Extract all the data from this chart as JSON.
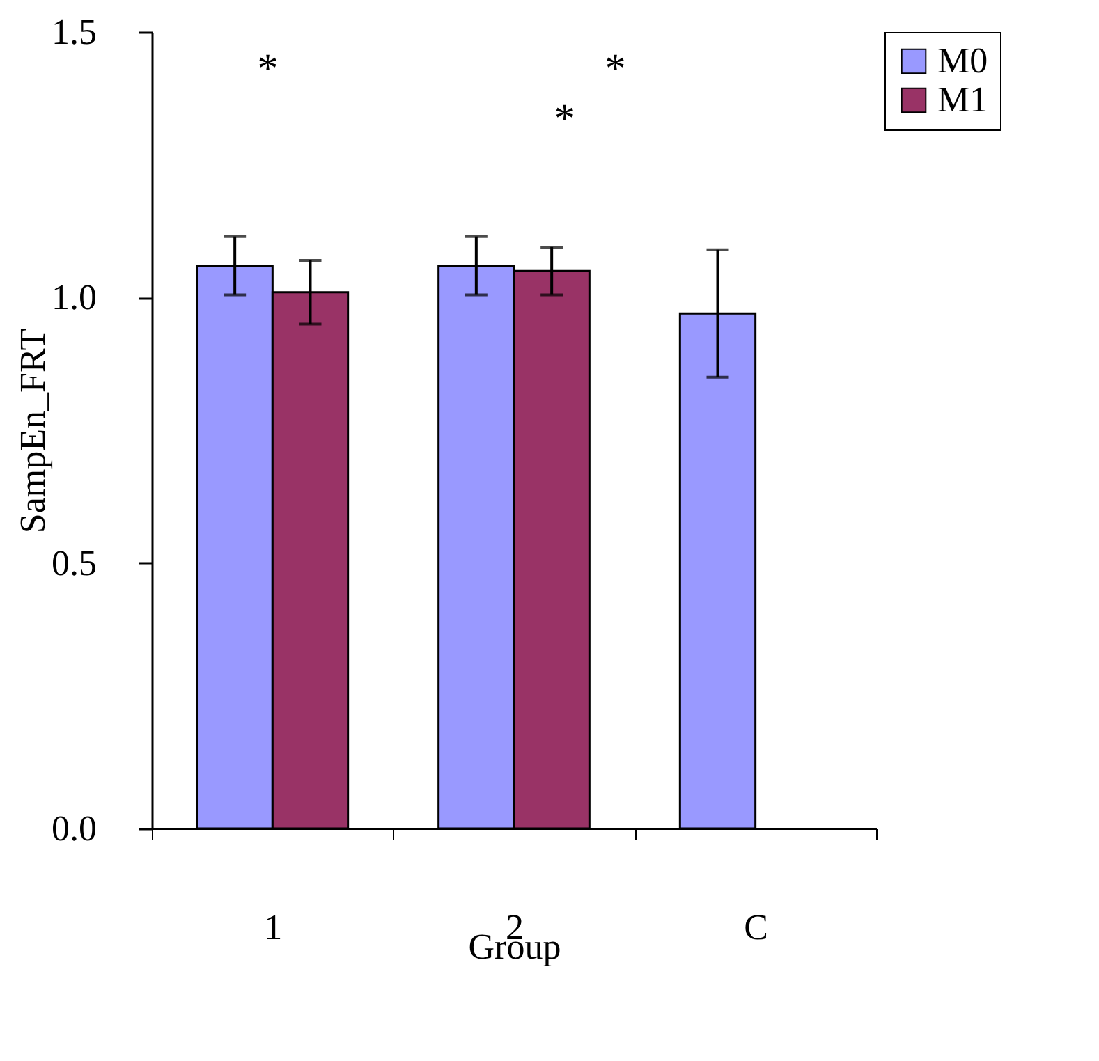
{
  "chart_data": {
    "type": "bar",
    "xlabel": "Group",
    "ylabel": "SampEn_FRT",
    "categories": [
      "1",
      "2",
      "C"
    ],
    "series": [
      {
        "name": "M0",
        "color": "#9999ff",
        "values": [
          1.06,
          1.06,
          0.97
        ],
        "errors": [
          0.055,
          0.055,
          0.12
        ]
      },
      {
        "name": "M1",
        "color": "#993366",
        "values": [
          1.01,
          1.05,
          null
        ],
        "errors": [
          0.06,
          0.045,
          null
        ]
      }
    ],
    "ylim": [
      0,
      1.5
    ],
    "yticks": [
      {
        "value": 0,
        "label": "0.0"
      },
      {
        "value": 0.5,
        "label": "0.5"
      },
      {
        "value": 1,
        "label": "1.0"
      },
      {
        "value": 1.5,
        "label": "1.5"
      }
    ],
    "legend": "right",
    "annotations": [
      "*",
      "*",
      "*"
    ]
  }
}
